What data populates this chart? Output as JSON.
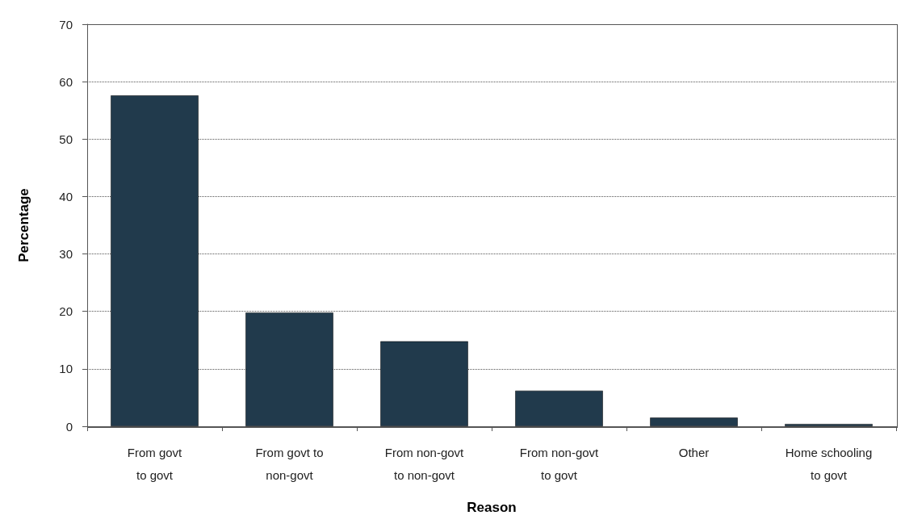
{
  "chart_data": {
    "type": "bar",
    "xlabel": "Reason",
    "ylabel": "Percentage",
    "categories": [
      "From govt\nto govt",
      "From govt to\nnon-govt",
      "From non-govt\nto non-govt",
      "From non-govt\nto govt",
      "Other",
      "Home schooling\nto govt"
    ],
    "values": [
      57.6,
      19.8,
      14.8,
      6.2,
      1.5,
      0.4
    ],
    "color": "#213a4c",
    "ylim": [
      0,
      70
    ],
    "yticks": [
      0,
      10,
      20,
      30,
      40,
      50,
      60,
      70
    ],
    "grid": "y"
  }
}
